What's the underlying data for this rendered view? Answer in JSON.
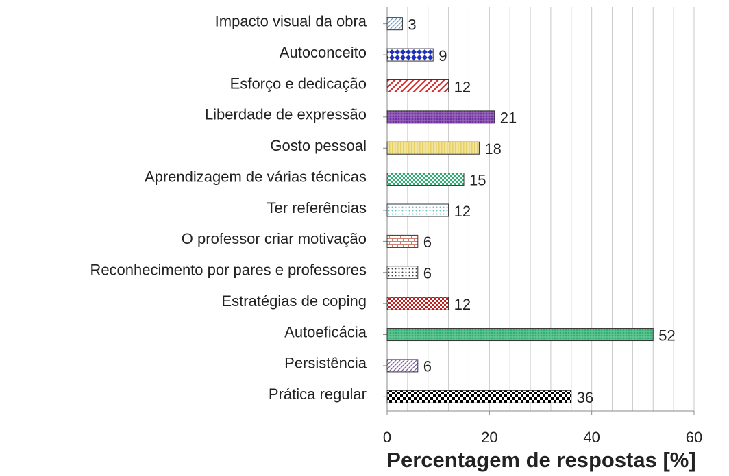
{
  "chart_data": {
    "type": "barh",
    "xlabel": "Percentagem de respostas [%]",
    "categories": [
      "Impacto visual da obra",
      "Autoconceito",
      "Esforço e dedicação",
      "Liberdade de expressão",
      "Gosto pessoal",
      "Aprendizagem de várias técnicas",
      "Ter referências",
      "O professor criar motivação",
      "Reconhecimento por pares e professores",
      "Estratégias de coping",
      "Autoeficácia",
      "Persistência",
      "Prática regular"
    ],
    "values": [
      3,
      9,
      12,
      21,
      18,
      15,
      12,
      6,
      6,
      12,
      52,
      6,
      36
    ],
    "colors": [
      "#6f9fc0",
      "#1f2fc0",
      "#d03030",
      "#7030a0",
      "#e8d060",
      "#30b070",
      "#60c0d0",
      "#d08070",
      "#404040",
      "#c02020",
      "#30b070",
      "#8060a0",
      "#000000"
    ],
    "patterns": [
      "diagonal",
      "diamond",
      "diagonal-wide",
      "dots-dense",
      "vertical",
      "checker-small",
      "dots",
      "brick",
      "dots-sparse",
      "checker-small",
      "dots-dense",
      "diagonal",
      "checker"
    ],
    "xlim": [
      0,
      60
    ],
    "xticks": [
      0,
      20,
      40,
      60
    ],
    "grid_lines": [
      4,
      8,
      12,
      16,
      20,
      24,
      28,
      32,
      36,
      40,
      44,
      48,
      52,
      56,
      60
    ]
  }
}
